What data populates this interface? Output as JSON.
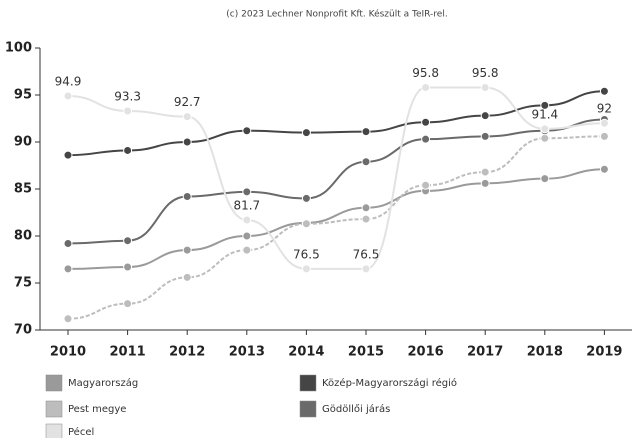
{
  "chart_data": {
    "type": "line",
    "title": "(c) 2023 Lechner Nonprofit Kft. Készült a TeIR-rel.",
    "categories": [
      "2010",
      "2011",
      "2012",
      "2013",
      "2014",
      "2015",
      "2016",
      "2017",
      "2018",
      "2019"
    ],
    "ylim": [
      70,
      100
    ],
    "yticks": [
      70,
      75,
      80,
      85,
      90,
      95,
      100
    ],
    "series": [
      {
        "name": "Magyarország",
        "color": "#9a9a9a",
        "values": [
          76.5,
          76.7,
          78.5,
          80.0,
          81.4,
          83.0,
          84.8,
          85.6,
          86.1,
          87.1
        ]
      },
      {
        "name": "Közép-Magyarországi régió",
        "color": "#454545",
        "values": [
          88.6,
          89.1,
          90.0,
          91.2,
          91.0,
          91.1,
          92.1,
          92.8,
          93.9,
          95.4
        ]
      },
      {
        "name": "Pest megye",
        "color": "#bdbdbd",
        "values": [
          71.2,
          72.8,
          75.6,
          78.5,
          81.3,
          81.8,
          85.4,
          86.8,
          90.4,
          90.6
        ]
      },
      {
        "name": "Gödöllői járás",
        "color": "#6a6a6a",
        "values": [
          79.2,
          79.5,
          84.2,
          84.7,
          84.0,
          87.9,
          90.3,
          90.6,
          91.2,
          92.4
        ]
      },
      {
        "name": "Pécel",
        "color": "#e2e2e2",
        "values": [
          94.9,
          93.3,
          92.7,
          81.7,
          76.5,
          76.5,
          95.8,
          95.8,
          91.4,
          92
        ],
        "show_labels": true
      }
    ]
  }
}
